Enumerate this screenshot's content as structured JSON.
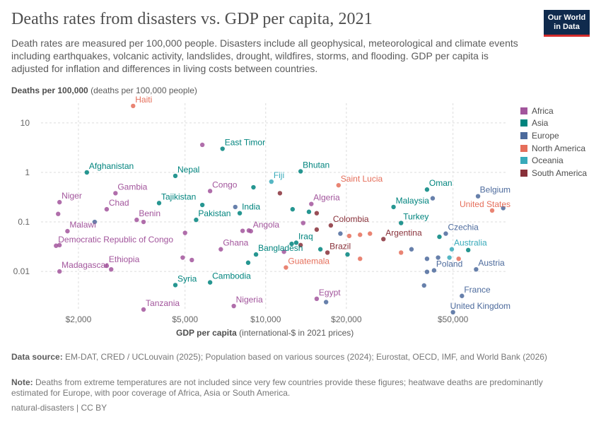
{
  "header": {
    "title": "Deaths rates from disasters vs. GDP per capita, 2021",
    "subtitle": "Death rates are measured per 100,000 people. Disasters include all geophysical, meteorological and climate events including earthquakes, volcanic activity, landslides, drought, wildfires, storms, and flooding. GDP per capita is adjusted for inflation and differences in living costs between countries.",
    "logo_line1": "Our World",
    "logo_line2": "in Data"
  },
  "axes": {
    "y_title": "Deaths per 100,000",
    "y_unit": "(deaths per 100,000 people)",
    "x_title": "GDP per capita",
    "x_unit": "(international-$ in 2021 prices)"
  },
  "footer": {
    "source_label": "Data source:",
    "source_text": "EM-DAT, CRED / UCLouvain (2025); Population based on various sources (2024); Eurostat, OECD, IMF, and World Bank (2026)",
    "note_label": "Note:",
    "note_text": "Deaths from extreme temperatures are not included since very few countries provide these figures; heatwave deaths are predominantly estimated for Europe, with poor coverage of Africa, Asia or South America.",
    "license": "natural-disasters | CC BY"
  },
  "colors": {
    "Africa": "#a2559c",
    "Asia": "#00847e",
    "Europe": "#4c6a9c",
    "North America": "#e56e5a",
    "Oceania": "#38aaba",
    "South America": "#883039"
  },
  "chart_data": {
    "type": "scatter",
    "x_scale": "log",
    "y_scale": "log",
    "xlim": [
      1450,
      80000
    ],
    "ylim": [
      0.0017,
      25
    ],
    "x_ticks": [
      2000,
      5000,
      10000,
      20000,
      50000
    ],
    "x_tick_labels": [
      "$2,000",
      "$5,000",
      "$10,000",
      "$20,000",
      "$50,000"
    ],
    "y_ticks": [
      0.01,
      0.1,
      1,
      10
    ],
    "y_tick_labels": [
      "0.01",
      "0.1",
      "1",
      "10"
    ],
    "legend": [
      "Africa",
      "Asia",
      "Europe",
      "North America",
      "Oceania",
      "South America"
    ],
    "legend_position": "right",
    "points": [
      {
        "x": 3200,
        "y": 22,
        "r": "North America",
        "label": "Haiti"
      },
      {
        "x": 5800,
        "y": 3.6,
        "r": "Africa"
      },
      {
        "x": 6900,
        "y": 3.0,
        "r": "Asia",
        "label": "East Timor"
      },
      {
        "x": 2150,
        "y": 1.0,
        "r": "Asia",
        "label": "Afghanistan"
      },
      {
        "x": 4600,
        "y": 0.85,
        "r": "Asia",
        "label": "Nepal"
      },
      {
        "x": 13500,
        "y": 1.05,
        "r": "Asia",
        "label": "Bhutan"
      },
      {
        "x": 10500,
        "y": 0.65,
        "r": "Oceania",
        "label": "Fiji"
      },
      {
        "x": 18700,
        "y": 0.55,
        "r": "North America",
        "label": "Saint Lucia"
      },
      {
        "x": 40000,
        "y": 0.45,
        "r": "Asia",
        "label": "Oman"
      },
      {
        "x": 6200,
        "y": 0.42,
        "r": "Africa",
        "label": "Congo"
      },
      {
        "x": 2750,
        "y": 0.38,
        "r": "Africa",
        "label": "Gambia"
      },
      {
        "x": 1700,
        "y": 0.25,
        "r": "Africa",
        "label": "Niger"
      },
      {
        "x": 4000,
        "y": 0.24,
        "r": "Asia",
        "label": "Tajikistan"
      },
      {
        "x": 14800,
        "y": 0.23,
        "r": "Africa",
        "label": "Algeria"
      },
      {
        "x": 2550,
        "y": 0.18,
        "r": "Africa",
        "label": "Chad"
      },
      {
        "x": 7700,
        "y": 0.2,
        "r": "Europe"
      },
      {
        "x": 8000,
        "y": 0.15,
        "r": "Asia",
        "label": "India"
      },
      {
        "x": 5800,
        "y": 0.22,
        "r": "Asia"
      },
      {
        "x": 30000,
        "y": 0.2,
        "r": "Asia",
        "label": "Malaysia"
      },
      {
        "x": 62000,
        "y": 0.33,
        "r": "Europe",
        "label": "Belgium"
      },
      {
        "x": 70000,
        "y": 0.17,
        "r": "North America",
        "label": "United States"
      },
      {
        "x": 77000,
        "y": 0.19,
        "r": "Europe"
      },
      {
        "x": 42000,
        "y": 0.3,
        "r": "Europe"
      },
      {
        "x": 9000,
        "y": 0.5,
        "r": "Asia"
      },
      {
        "x": 11300,
        "y": 0.38,
        "r": "South America"
      },
      {
        "x": 14500,
        "y": 0.16,
        "r": "Asia"
      },
      {
        "x": 12600,
        "y": 0.18,
        "r": "Asia"
      },
      {
        "x": 15500,
        "y": 0.15,
        "r": "South America"
      },
      {
        "x": 3300,
        "y": 0.11,
        "r": "Africa",
        "label": "Benin"
      },
      {
        "x": 3500,
        "y": 0.1,
        "r": "Africa"
      },
      {
        "x": 5500,
        "y": 0.11,
        "r": "Asia",
        "label": "Pakistan"
      },
      {
        "x": 2300,
        "y": 0.1,
        "r": "Europe"
      },
      {
        "x": 1680,
        "y": 0.145,
        "r": "Africa"
      },
      {
        "x": 8800,
        "y": 0.065,
        "r": "Africa",
        "label": "Angola"
      },
      {
        "x": 8650,
        "y": 0.067,
        "r": "Africa"
      },
      {
        "x": 13800,
        "y": 0.095,
        "r": "Africa"
      },
      {
        "x": 17500,
        "y": 0.085,
        "r": "South America",
        "label": "Colombia"
      },
      {
        "x": 15500,
        "y": 0.07,
        "r": "South America"
      },
      {
        "x": 32000,
        "y": 0.095,
        "r": "Asia",
        "label": "Turkey"
      },
      {
        "x": 1820,
        "y": 0.065,
        "r": "Africa",
        "label": "Malawi"
      },
      {
        "x": 1650,
        "y": 0.033,
        "r": "Africa",
        "label": "Democratic Republic of Congo"
      },
      {
        "x": 1700,
        "y": 0.034,
        "r": "Africa"
      },
      {
        "x": 5000,
        "y": 0.06,
        "r": "Africa"
      },
      {
        "x": 8200,
        "y": 0.066,
        "r": "Africa"
      },
      {
        "x": 6800,
        "y": 0.028,
        "r": "Africa",
        "label": "Ghana"
      },
      {
        "x": 13000,
        "y": 0.038,
        "r": "Asia",
        "label": "Iraq"
      },
      {
        "x": 12500,
        "y": 0.036,
        "r": "Asia"
      },
      {
        "x": 13500,
        "y": 0.034,
        "r": "South America"
      },
      {
        "x": 11700,
        "y": 0.025,
        "r": "Africa"
      },
      {
        "x": 16000,
        "y": 0.028,
        "r": "Asia"
      },
      {
        "x": 19000,
        "y": 0.058,
        "r": "Europe"
      },
      {
        "x": 20500,
        "y": 0.052,
        "r": "North America"
      },
      {
        "x": 22500,
        "y": 0.055,
        "r": "North America"
      },
      {
        "x": 24500,
        "y": 0.058,
        "r": "North America"
      },
      {
        "x": 27500,
        "y": 0.045,
        "r": "South America",
        "label": "Argentina"
      },
      {
        "x": 44500,
        "y": 0.05,
        "r": "Asia"
      },
      {
        "x": 47000,
        "y": 0.058,
        "r": "Europe",
        "label": "Czechia"
      },
      {
        "x": 49500,
        "y": 0.028,
        "r": "Oceania",
        "label": "Australia"
      },
      {
        "x": 57000,
        "y": 0.027,
        "r": "Asia"
      },
      {
        "x": 32000,
        "y": 0.024,
        "r": "North America"
      },
      {
        "x": 35000,
        "y": 0.028,
        "r": "Europe"
      },
      {
        "x": 9200,
        "y": 0.022,
        "r": "Asia",
        "label": "Bangladesh"
      },
      {
        "x": 8600,
        "y": 0.015,
        "r": "Asia"
      },
      {
        "x": 4900,
        "y": 0.019,
        "r": "Africa"
      },
      {
        "x": 5300,
        "y": 0.017,
        "r": "Africa"
      },
      {
        "x": 11900,
        "y": 0.012,
        "r": "North America",
        "label": "Guatemala"
      },
      {
        "x": 17000,
        "y": 0.024,
        "r": "South America",
        "label": "Brazil"
      },
      {
        "x": 20200,
        "y": 0.022,
        "r": "Asia"
      },
      {
        "x": 22500,
        "y": 0.018,
        "r": "North America"
      },
      {
        "x": 2550,
        "y": 0.013,
        "r": "Africa",
        "label": "Ethiopia"
      },
      {
        "x": 2650,
        "y": 0.011,
        "r": "Africa"
      },
      {
        "x": 1700,
        "y": 0.01,
        "r": "Africa",
        "label": "Madagascar"
      },
      {
        "x": 40000,
        "y": 0.018,
        "r": "Europe"
      },
      {
        "x": 44000,
        "y": 0.019,
        "r": "Europe"
      },
      {
        "x": 48500,
        "y": 0.019,
        "r": "Oceania"
      },
      {
        "x": 52500,
        "y": 0.018,
        "r": "North America"
      },
      {
        "x": 42500,
        "y": 0.0105,
        "r": "Europe",
        "label": "Poland"
      },
      {
        "x": 40000,
        "y": 0.0098,
        "r": "Europe"
      },
      {
        "x": 61000,
        "y": 0.011,
        "r": "Europe",
        "label": "Austria"
      },
      {
        "x": 4600,
        "y": 0.0053,
        "r": "Asia",
        "label": "Syria"
      },
      {
        "x": 6200,
        "y": 0.006,
        "r": "Asia",
        "label": "Cambodia"
      },
      {
        "x": 39000,
        "y": 0.0052,
        "r": "Europe"
      },
      {
        "x": 54000,
        "y": 0.0032,
        "r": "Europe",
        "label": "France"
      },
      {
        "x": 15500,
        "y": 0.0028,
        "r": "Africa",
        "label": "Egypt"
      },
      {
        "x": 16800,
        "y": 0.0024,
        "r": "Europe"
      },
      {
        "x": 3500,
        "y": 0.0017,
        "r": "Africa",
        "label": "Tanzania"
      },
      {
        "x": 7600,
        "y": 0.002,
        "r": "Africa",
        "label": "Nigeria"
      },
      {
        "x": 50000,
        "y": 0.0015,
        "r": "Europe",
        "label": "United Kingdom"
      }
    ]
  }
}
